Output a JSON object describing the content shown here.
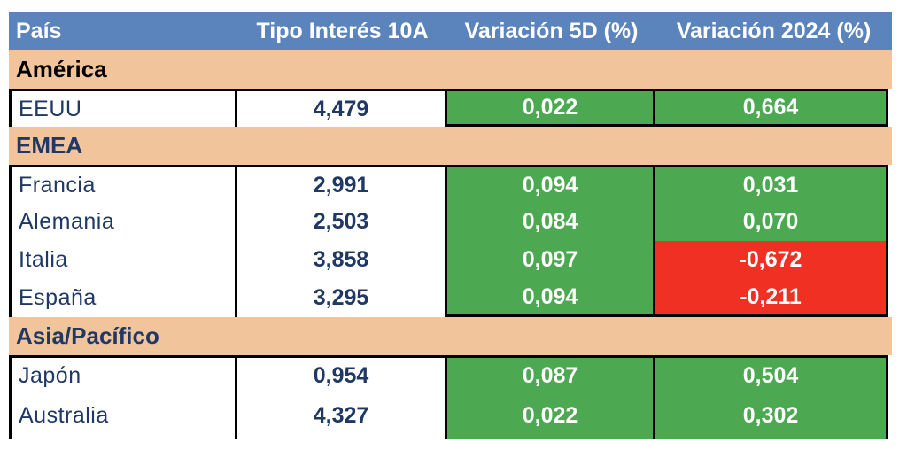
{
  "colors": {
    "header-bg": "#5B84BC",
    "header-text": "#FFFFFF",
    "section-bg": "#F2C49C",
    "positive-bg": "#4DA852",
    "negative-bg": "#EF3023",
    "navy-text": "#1F3864",
    "border": "#000000"
  },
  "table": {
    "columns": [
      "País",
      "Tipo Interés 10A",
      "Variación 5D (%)",
      "Variación 2024 (%)"
    ],
    "sections": [
      {
        "name": "América",
        "name_color": "#000000",
        "rows": [
          {
            "country": "EEUU",
            "rate": "4,479",
            "var_5d": "0,022",
            "var_2024": "0,664"
          }
        ]
      },
      {
        "name": "EMEA",
        "name_color": "#1F3864",
        "rows": [
          {
            "country": "Francia",
            "rate": "2,991",
            "var_5d": "0,094",
            "var_2024": "0,031"
          },
          {
            "country": "Alemania",
            "rate": "2,503",
            "var_5d": "0,084",
            "var_2024": "0,070"
          },
          {
            "country": "Italia",
            "rate": "3,858",
            "var_5d": "0,097",
            "var_2024": "-0,672"
          },
          {
            "country": "España",
            "rate": "3,295",
            "var_5d": "0,094",
            "var_2024": "-0,211"
          }
        ]
      },
      {
        "name": "Asia/Pacífico",
        "name_color": "#1F3864",
        "rows": [
          {
            "country": "Japón",
            "rate": "0,954",
            "var_5d": "0,087",
            "var_2024": "0,504"
          },
          {
            "country": "Australia",
            "rate": "4,327",
            "var_5d": "0,022",
            "var_2024": "0,302"
          }
        ]
      }
    ]
  },
  "chart_data": {
    "type": "table",
    "columns": [
      "País",
      "Tipo Interés 10A",
      "Variación 5D (%)",
      "Variación 2024 (%)"
    ],
    "rows": [
      {
        "section": "América",
        "country": "EEUU",
        "tipo_interes_10a": 4.479,
        "variacion_5d_pct": 0.022,
        "variacion_2024_pct": 0.664
      },
      {
        "section": "EMEA",
        "country": "Francia",
        "tipo_interes_10a": 2.991,
        "variacion_5d_pct": 0.094,
        "variacion_2024_pct": 0.031
      },
      {
        "section": "EMEA",
        "country": "Alemania",
        "tipo_interes_10a": 2.503,
        "variacion_5d_pct": 0.084,
        "variacion_2024_pct": 0.07
      },
      {
        "section": "EMEA",
        "country": "Italia",
        "tipo_interes_10a": 3.858,
        "variacion_5d_pct": 0.097,
        "variacion_2024_pct": -0.672
      },
      {
        "section": "EMEA",
        "country": "España",
        "tipo_interes_10a": 3.295,
        "variacion_5d_pct": 0.094,
        "variacion_2024_pct": -0.211
      },
      {
        "section": "Asia/Pacífico",
        "country": "Japón",
        "tipo_interes_10a": 0.954,
        "variacion_5d_pct": 0.087,
        "variacion_2024_pct": 0.504
      },
      {
        "section": "Asia/Pacífico",
        "country": "Australia",
        "tipo_interes_10a": 4.327,
        "variacion_5d_pct": 0.022,
        "variacion_2024_pct": 0.302
      }
    ],
    "legend": "green cells = positive variation, red cells = negative variation"
  }
}
